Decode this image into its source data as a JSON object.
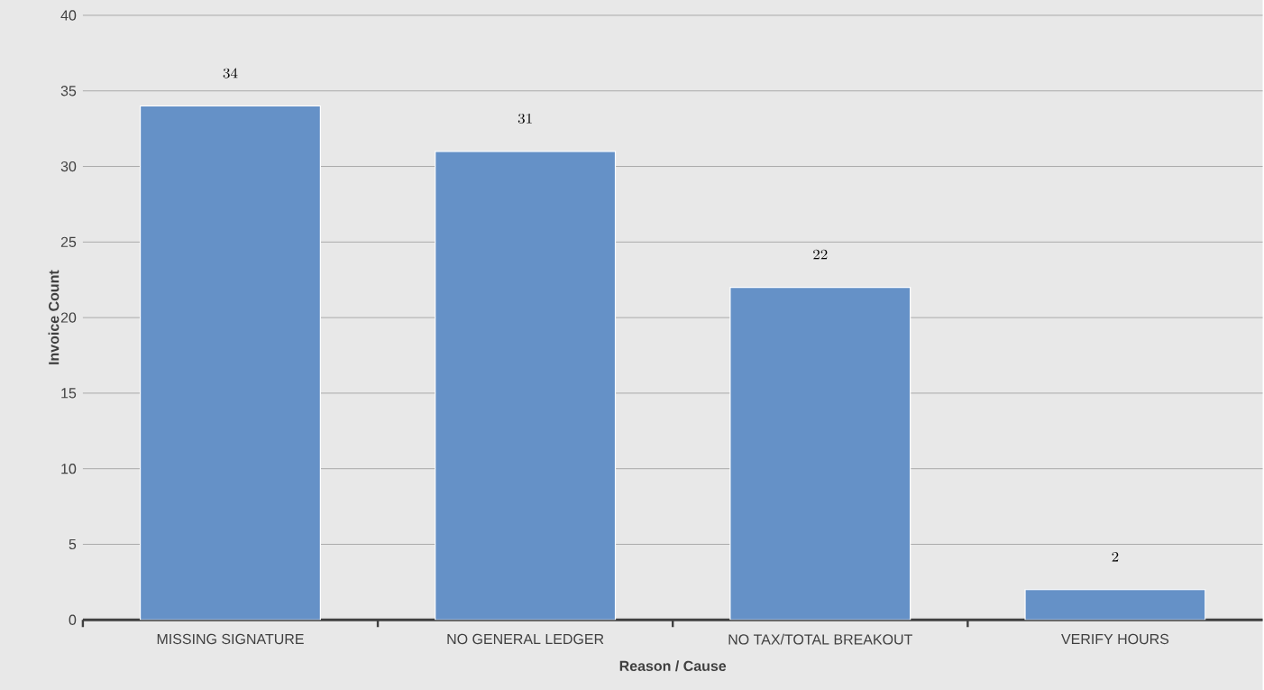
{
  "chart_data": {
    "type": "bar",
    "xlabel": "Reason / Cause",
    "ylabel": "Invoice Count",
    "categories": [
      "MISSING SIGNATURE",
      "NO GENERAL LEDGER",
      "NO TAX/TOTAL BREAKOUT",
      "VERIFY HOURS"
    ],
    "values": [
      34,
      31,
      22,
      2
    ],
    "color": "#6591c7",
    "ylim": [
      0,
      40
    ],
    "yticks": [
      0,
      5,
      10,
      15,
      20,
      25,
      30,
      35,
      40
    ],
    "grid": "y",
    "data_labels": true
  }
}
